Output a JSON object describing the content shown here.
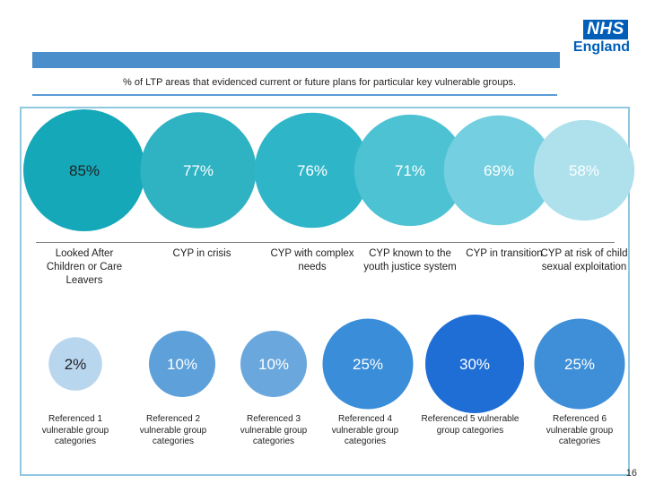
{
  "logo": {
    "nhs": "NHS",
    "region": "England"
  },
  "subtitle": "% of LTP areas that evidenced current or future plans for particular key vulnerable groups.",
  "page_number": "16",
  "colors": {
    "header_bar": "#4a8ecb",
    "panel_border": "#8fc8df",
    "nhs_blue": "#005eb8"
  },
  "chart_data": [
    {
      "type": "bubble",
      "categories": [
        "Looked After Children or Care Leavers",
        "CYP in crisis",
        "CYP with complex needs",
        "CYP known to the youth justice system",
        "CYP in transition",
        "CYP at risk of child sexual exploitation"
      ],
      "values": [
        85,
        77,
        76,
        71,
        69,
        58
      ],
      "value_labels": [
        "85%",
        "77%",
        "76%",
        "71%",
        "69%",
        "58%"
      ],
      "colors": [
        "#14a8b8",
        "#2fb2c2",
        "#2fb5c8",
        "#4cc2d2",
        "#74cfe0",
        "#aee1ec"
      ],
      "label_colors": [
        "#222222",
        "#ffffff",
        "#ffffff",
        "#ffffff",
        "#ffffff",
        "#ffffff"
      ]
    },
    {
      "type": "bubble",
      "categories": [
        "Referenced 1 vulnerable group categories",
        "Referenced 2 vulnerable group categories",
        "Referenced 3 vulnerable group categories",
        "Referenced 4 vulnerable group categories",
        "Referenced 5 vulnerable group categories",
        "Referenced 6 vulnerable group categories"
      ],
      "values": [
        2,
        10,
        10,
        25,
        30,
        25
      ],
      "value_labels": [
        "2%",
        "10%",
        "10%",
        "25%",
        "30%",
        "25%"
      ],
      "colors": [
        "#b9d6ef",
        "#5da0da",
        "#6aa7dc",
        "#3a8dd8",
        "#1f6ed6",
        "#3e8fd8"
      ],
      "label_colors": [
        "#222222",
        "#ffffff",
        "#ffffff",
        "#ffffff",
        "#ffffff",
        "#ffffff"
      ]
    }
  ]
}
